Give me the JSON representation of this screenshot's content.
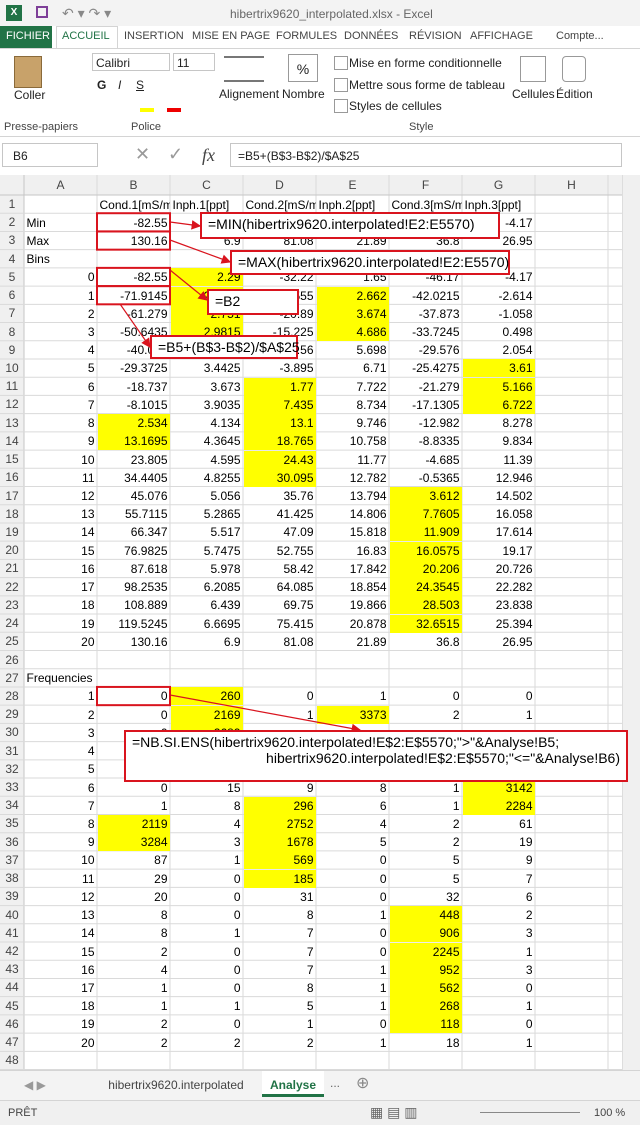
{
  "title_bar": "hibertrix9620_interpolated.xlsx - Excel",
  "ribbon": {
    "tabs": [
      "FICHIER",
      "ACCUEIL",
      "INSERTION",
      "MISE EN PAGE",
      "FORMULES",
      "DONNÉES",
      "RÉVISION",
      "AFFICHAGE",
      "Compte..."
    ],
    "paste": "Coller",
    "clipboard_group": "Presse-papiers",
    "font_name": "Calibri",
    "font_size": 11,
    "bold": "G",
    "italic": "I",
    "underline": "S",
    "font_group": "Police",
    "alignment": "Alignement",
    "number_symbol": "%",
    "number": "Nombre",
    "styles": [
      "Mise en forme conditionnelle",
      "Mettre sous forme de tableau",
      "Styles de cellules"
    ],
    "style_group": "Style",
    "cells": "Cellules",
    "editing": "Édition"
  },
  "formula_bar": {
    "name_box": "B6",
    "fx": "fx",
    "formula": "=B5+(B$3-B$2)/$A$25"
  },
  "columns": [
    "A",
    "B",
    "C",
    "D",
    "E",
    "F",
    "G",
    "H"
  ],
  "rows": [
    1,
    2,
    3,
    4,
    5,
    6,
    7,
    8,
    9,
    10,
    11,
    12,
    13,
    14,
    15,
    16,
    17,
    18,
    19,
    20,
    21,
    22,
    23,
    24,
    25,
    26,
    27,
    28,
    29,
    30,
    31,
    32,
    33,
    34,
    35,
    36,
    37,
    38,
    39,
    40,
    41,
    42,
    43,
    44,
    45,
    46,
    47,
    48
  ],
  "cells": {
    "B1": "Cond.1[mS/m]",
    "C1": "Inph.1[ppt]",
    "D1": "Cond.2[mS/m]",
    "E1": "Inph.2[ppt]",
    "F1": "Cond.3[mS/m]",
    "G1": "Inph.3[ppt]",
    "A2": "Min",
    "B2": -82.55,
    "C2": 2.29,
    "D2": -32.22,
    "E2": 1.65,
    "F2": -46.17,
    "G2": -4.17,
    "A3": "Max",
    "B3": 130.16,
    "C3": 6.9,
    "D3": 81.08,
    "E3": 21.89,
    "F3": 36.8,
    "G3": 26.95,
    "A4": "Bins",
    "A5": 0,
    "B5": -82.55,
    "C5": 2.29,
    "D5": -32.22,
    "E5": 1.65,
    "F5": -46.17,
    "G5": -4.17,
    "A6": 1,
    "B6": -71.9145,
    "C6": 2.5205,
    "D6": -26.555,
    "E6": 2.662,
    "F6": -42.0215,
    "G6": -2.614,
    "A7": 2,
    "B7": -61.279,
    "C7": 2.751,
    "D7": -20.89,
    "E7": 3.674,
    "F7": -37.873,
    "G7": -1.058,
    "A8": 3,
    "B8": -50.6435,
    "C8": 2.9815,
    "D8": -15.225,
    "E8": 4.686,
    "F8": -33.7245,
    "G8": 0.498,
    "A9": 4,
    "B9": -40.008,
    "C9": 3.212,
    "D9": -9.56,
    "E9": 5.698,
    "F9": -29.576,
    "G9": 2.054,
    "A10": 5,
    "B10": -29.3725,
    "C10": 3.4425,
    "D10": -3.895,
    "E10": 6.71,
    "F10": -25.4275,
    "G10": 3.61,
    "A11": 6,
    "B11": -18.737,
    "C11": 3.673,
    "D11": 1.77,
    "E11": 7.722,
    "F11": -21.279,
    "G11": 5.166,
    "A12": 7,
    "B12": -8.1015,
    "C12": 3.9035,
    "D12": 7.435,
    "E12": 8.734,
    "F12": -17.1305,
    "G12": 6.722,
    "A13": 8,
    "B13": 2.534,
    "C13": 4.134,
    "D13": 13.1,
    "E13": 9.746,
    "F13": -12.982,
    "G13": 8.278,
    "A14": 9,
    "B14": 13.1695,
    "C14": 4.3645,
    "D14": 18.765,
    "E14": 10.758,
    "F14": -8.8335,
    "G14": 9.834,
    "A15": 10,
    "B15": 23.805,
    "C15": 4.595,
    "D15": 24.43,
    "E15": 11.77,
    "F15": -4.685,
    "G15": 11.39,
    "A16": 11,
    "B16": 34.4405,
    "C16": 4.8255,
    "D16": 30.095,
    "E16": 12.782,
    "F16": -0.5365,
    "G16": 12.946,
    "A17": 12,
    "B17": 45.076,
    "C17": 5.056,
    "D17": 35.76,
    "E17": 13.794,
    "F17": 3.612,
    "G17": 14.502,
    "A18": 13,
    "B18": 55.7115,
    "C18": 5.2865,
    "D18": 41.425,
    "E18": 14.806,
    "F18": 7.7605,
    "G18": 16.058,
    "A19": 14,
    "B19": 66.347,
    "C19": 5.517,
    "D19": 47.09,
    "E19": 15.818,
    "F19": 11.909,
    "G19": 17.614,
    "A20": 15,
    "B20": 76.9825,
    "C20": 5.7475,
    "D20": 52.755,
    "E20": 16.83,
    "F20": 16.0575,
    "G20": 19.17,
    "A21": 16,
    "B21": 87.618,
    "C21": 5.978,
    "D21": 58.42,
    "E21": 17.842,
    "F21": 20.206,
    "G21": 20.726,
    "A22": 17,
    "B22": 98.2535,
    "C22": 6.2085,
    "D22": 64.085,
    "E22": 18.854,
    "F22": 24.3545,
    "G22": 22.282,
    "A23": 18,
    "B23": 108.889,
    "C23": 6.439,
    "D23": 69.75,
    "E23": 19.866,
    "F23": 28.503,
    "G23": 23.838,
    "A24": 19,
    "B24": 119.5245,
    "C24": 6.6695,
    "D24": 75.415,
    "E24": 20.878,
    "F24": 32.6515,
    "G24": 25.394,
    "A25": 20,
    "B25": 130.16,
    "C25": 6.9,
    "D25": 81.08,
    "E25": 21.89,
    "F25": 36.8,
    "G25": 26.95,
    "A27": "Frequencies",
    "A28": 1,
    "B28": 0,
    "C28": 260,
    "D28": 0,
    "E28": 1,
    "F28": 0,
    "G28": 0,
    "A29": 2,
    "B29": 0,
    "C29": 2169,
    "D29": 1,
    "E29": 3373,
    "F29": 2,
    "G29": 1,
    "A30": 3,
    "B30": 0,
    "C30": 2689,
    "A31": 4,
    "A32": 5,
    "B32": 0,
    "A33": 6,
    "B33": 0,
    "C33": 15,
    "D33": 9,
    "E33": 8,
    "F33": 1,
    "G33": 3142,
    "A34": 7,
    "B34": 1,
    "C34": 8,
    "D34": 296,
    "E34": 6,
    "F34": 1,
    "G34": 2284,
    "A35": 8,
    "B35": 2119,
    "C35": 4,
    "D35": 2752,
    "E35": 4,
    "F35": 2,
    "G35": 61,
    "A36": 9,
    "B36": 3284,
    "C36": 3,
    "D36": 1678,
    "E36": 5,
    "F36": 2,
    "G36": 19,
    "A37": 10,
    "B37": 87,
    "C37": 1,
    "D37": 569,
    "E37": 0,
    "F37": 5,
    "G37": 9,
    "A38": 11,
    "B38": 29,
    "C38": 0,
    "D38": 185,
    "E38": 0,
    "F38": 5,
    "G38": 7,
    "A39": 12,
    "B39": 20,
    "C39": 0,
    "D39": 31,
    "E39": 0,
    "F39": 32,
    "G39": 6,
    "A40": 13,
    "B40": 8,
    "C40": 0,
    "D40": 8,
    "E40": 1,
    "F40": 448,
    "G40": 2,
    "A41": 14,
    "B41": 8,
    "C41": 1,
    "D41": 7,
    "E41": 0,
    "F41": 906,
    "G41": 3,
    "A42": 15,
    "B42": 2,
    "C42": 0,
    "D42": 7,
    "E42": 0,
    "F42": 2245,
    "G42": 1,
    "A43": 16,
    "B43": 4,
    "C43": 0,
    "D43": 7,
    "E43": 1,
    "F43": 952,
    "G43": 3,
    "A44": 17,
    "B44": 1,
    "C44": 0,
    "D44": 8,
    "E44": 1,
    "F44": 562,
    "G44": 0,
    "A45": 18,
    "B45": 1,
    "C45": 1,
    "D45": 5,
    "E45": 1,
    "F45": 268,
    "G45": 1,
    "A46": 19,
    "B46": 2,
    "C46": 0,
    "D46": 1,
    "E46": 0,
    "F46": 118,
    "G46": 0,
    "A47": 20,
    "B47": 2,
    "C47": 2,
    "D47": 2,
    "E47": 1,
    "F47": 18,
    "G47": 1
  },
  "highlight_color": "#ffff00",
  "highlighted_cells": [
    "C5",
    "C6",
    "C7",
    "C8",
    "E6",
    "E7",
    "E8",
    "G10",
    "G11",
    "G12",
    "D11",
    "D12",
    "D13",
    "D14",
    "D15",
    "D16",
    "B13",
    "B14",
    "F17",
    "F18",
    "F19",
    "F20",
    "F21",
    "F22",
    "F23",
    "F24",
    "C28",
    "C29",
    "E29",
    "C30",
    "G33",
    "G34",
    "D34",
    "B35",
    "D35",
    "B36",
    "D36",
    "D37",
    "D38",
    "F40",
    "F41",
    "F42",
    "F43",
    "F44",
    "F45",
    "F46"
  ],
  "annotations": [
    {
      "lines": [
        "=MIN(hibertrix9620.interpolated!E2:E5570)"
      ]
    },
    {
      "lines": [
        "=MAX(hibertrix9620.interpolated!E2:E5570)"
      ]
    },
    {
      "lines": [
        "=B2"
      ]
    },
    {
      "lines": [
        "=B5+(B$3-B$2)/$A$25"
      ]
    },
    {
      "lines": [
        "=NB.SI.ENS(hibertrix9620.interpolated!E$2:E$5570;\">\"&Analyse!B5;",
        "hibertrix9620.interpolated!E$2:E$5570;\"<=\"&Analyse!B6)"
      ]
    }
  ],
  "sheet_tabs": [
    "hibertrix9620.interpolated",
    "Analyse"
  ],
  "status": {
    "ready": "PRÊT",
    "zoom": "100 %"
  }
}
